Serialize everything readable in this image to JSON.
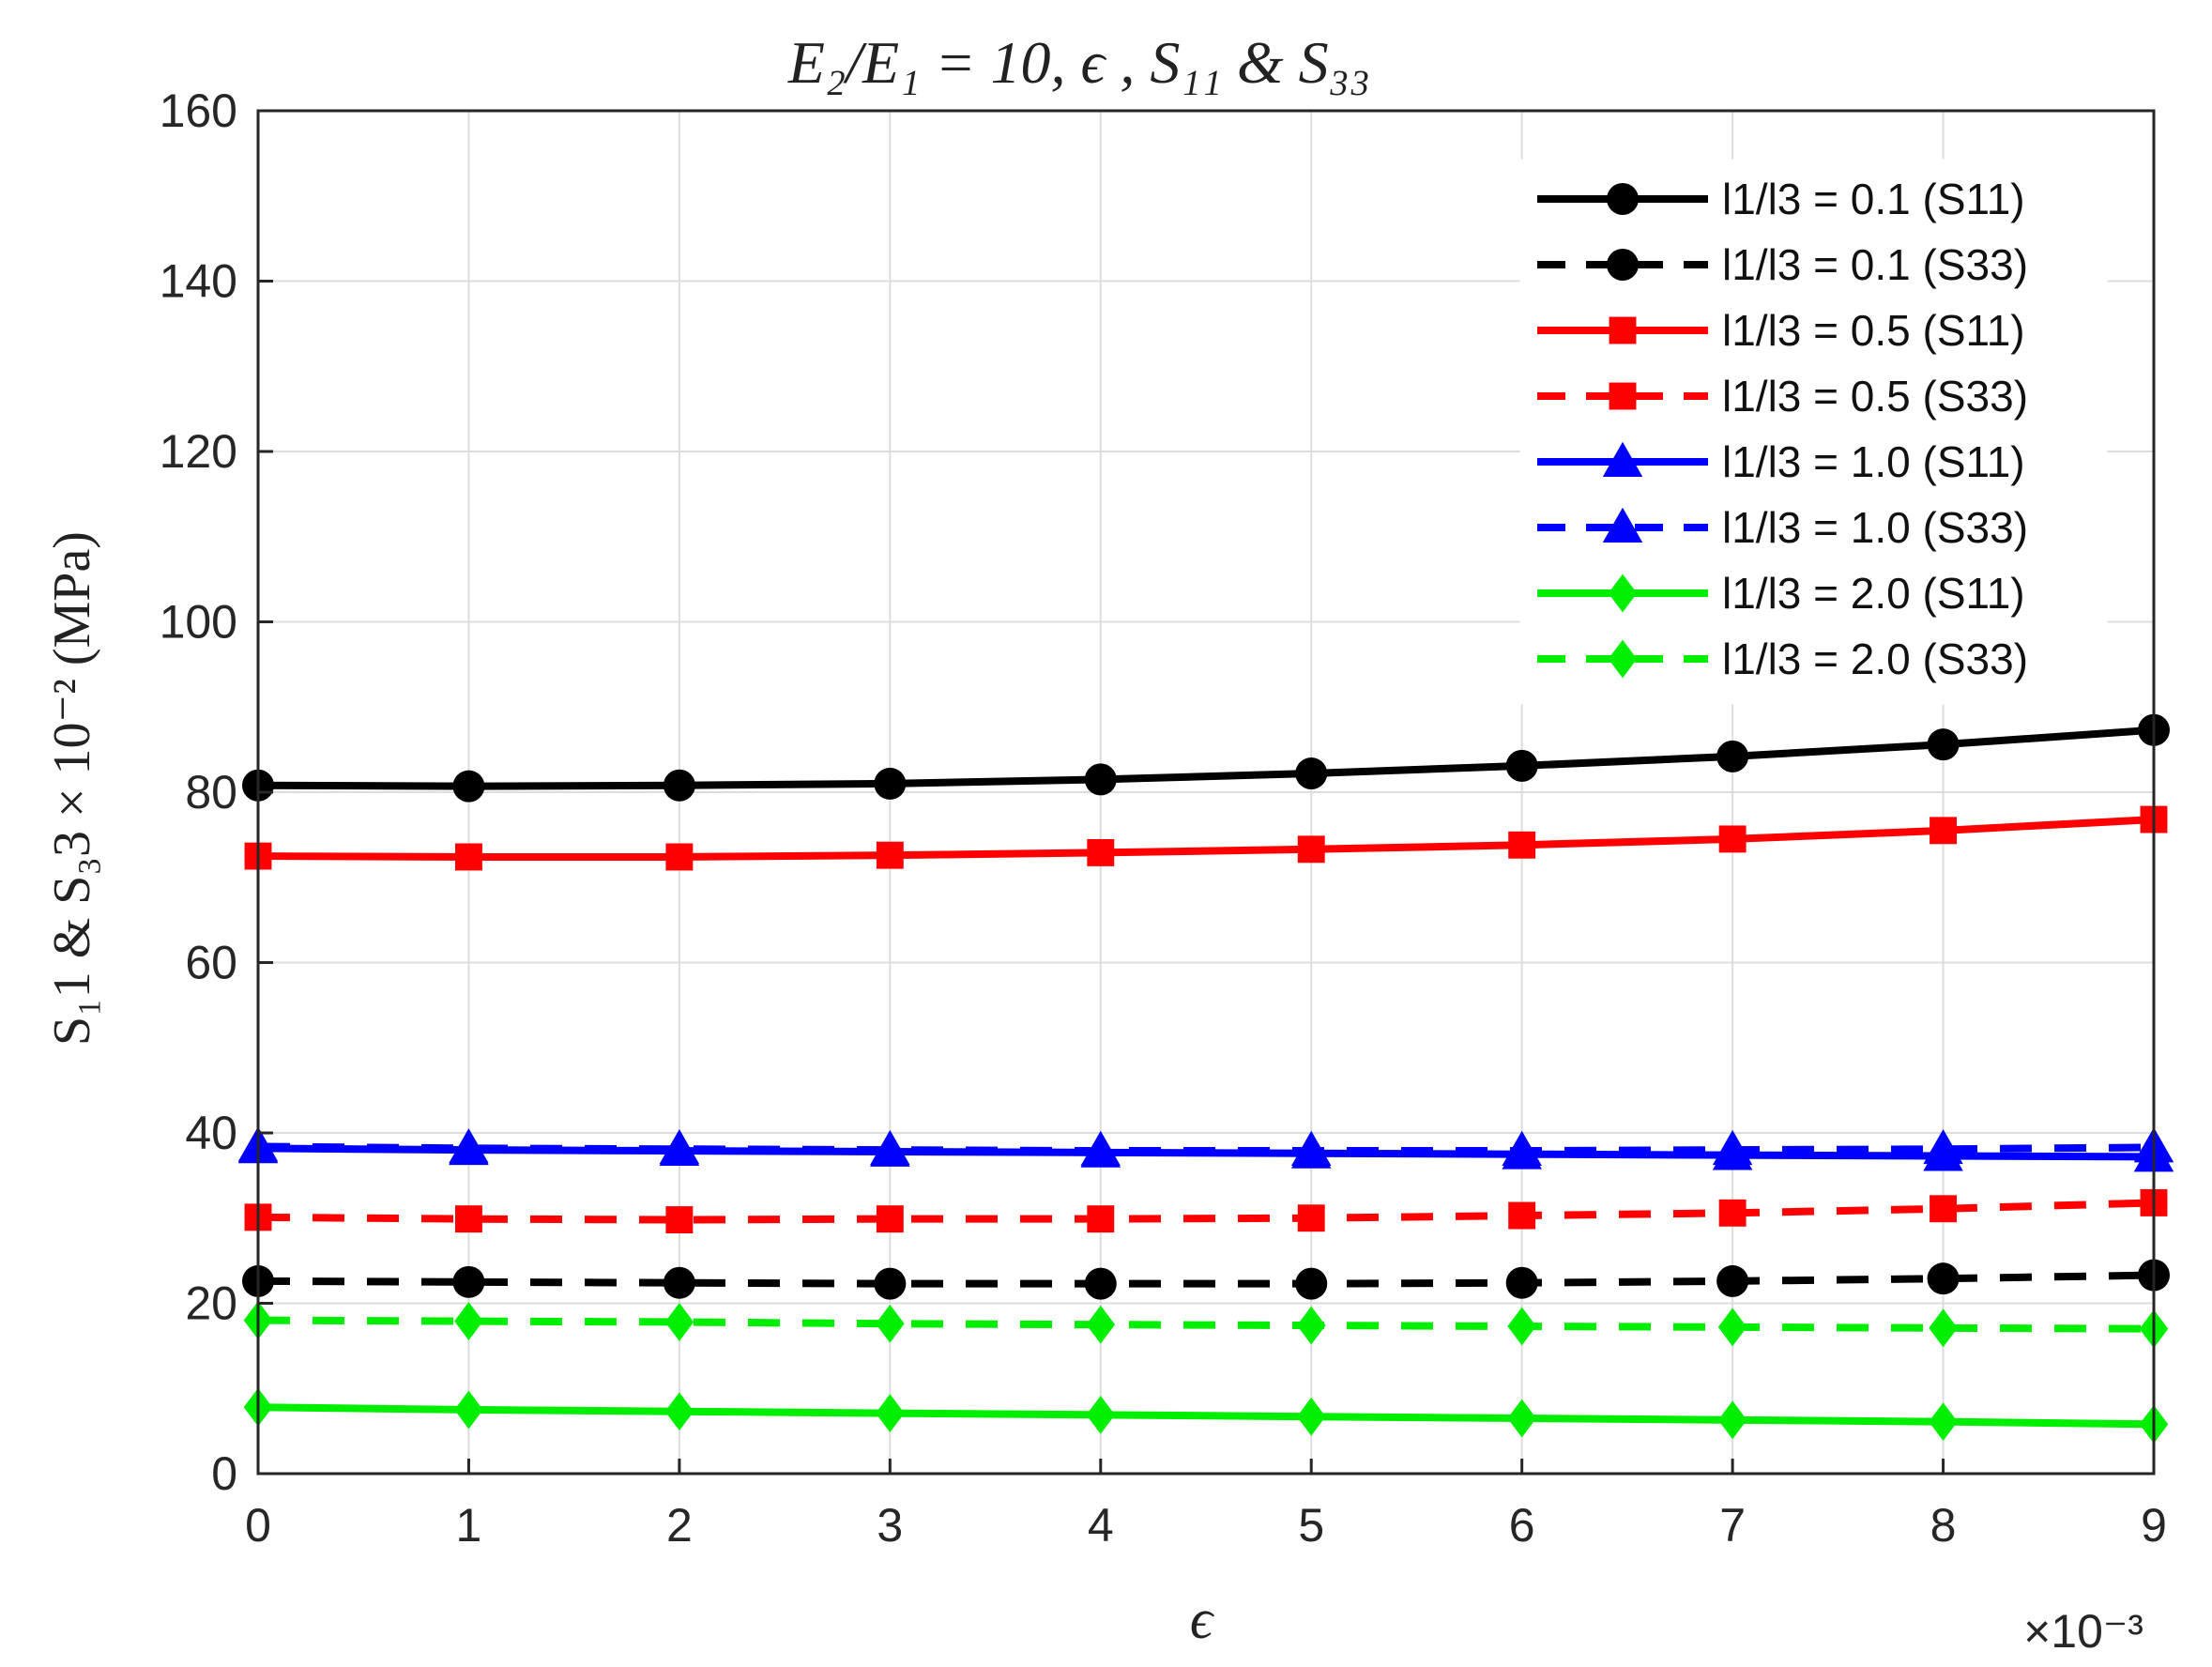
{
  "chart_data": {
    "type": "line",
    "title": "E₂/E₁ = 10, ϵ , S₁₁ & S₃₃",
    "xlabel": "ϵ",
    "x_multiplier": "×10⁻³",
    "ylabel": "S₁1 & S₃3 × 10⁻² (MPa)",
    "xlim": [
      0,
      9
    ],
    "ylim": [
      0,
      160
    ],
    "x_ticks": [
      "0",
      "1",
      "2",
      "3",
      "4",
      "5",
      "6",
      "7",
      "8",
      "9"
    ],
    "y_ticks": [
      "0",
      "20",
      "40",
      "60",
      "80",
      "100",
      "120",
      "140",
      "160"
    ],
    "grid": true,
    "legend_position": "top-right",
    "x": [
      0,
      1,
      2,
      3,
      4,
      5,
      6,
      7,
      8,
      9
    ],
    "series": [
      {
        "name": "l1/l3 = 0.1 (S11)",
        "color": "#000000",
        "dash": "solid",
        "marker": "circle",
        "values": [
          80.8,
          80.7,
          80.8,
          81.0,
          81.5,
          82.2,
          83.1,
          84.2,
          85.6,
          87.3
        ]
      },
      {
        "name": "l1/l3 = 0.1 (S33)",
        "color": "#000000",
        "dash": "dashed",
        "marker": "circle",
        "values": [
          22.6,
          22.5,
          22.4,
          22.3,
          22.3,
          22.3,
          22.4,
          22.6,
          22.9,
          23.3
        ]
      },
      {
        "name": "l1/l3 = 0.5 (S11)",
        "color": "#ff0000",
        "dash": "solid",
        "marker": "square",
        "values": [
          72.5,
          72.4,
          72.4,
          72.6,
          72.9,
          73.3,
          73.8,
          74.5,
          75.5,
          76.8
        ]
      },
      {
        "name": "l1/l3 = 0.5 (S33)",
        "color": "#ff0000",
        "dash": "dashed",
        "marker": "square",
        "values": [
          30.1,
          29.9,
          29.8,
          29.9,
          29.9,
          30.0,
          30.3,
          30.6,
          31.1,
          31.8
        ]
      },
      {
        "name": "l1/l3 = 1.0 (S11)",
        "color": "#0000ff",
        "dash": "solid",
        "marker": "triangle",
        "values": [
          38.2,
          38.0,
          37.9,
          37.8,
          37.7,
          37.6,
          37.5,
          37.4,
          37.3,
          37.2
        ]
      },
      {
        "name": "l1/l3 = 1.0 (S33)",
        "color": "#0000ff",
        "dash": "dashed",
        "marker": "triangle",
        "values": [
          38.4,
          38.2,
          38.1,
          38.0,
          37.9,
          37.9,
          37.9,
          38.0,
          38.1,
          38.3
        ]
      },
      {
        "name": "l1/l3 = 2.0 (S11)",
        "color": "#00ee00",
        "dash": "solid",
        "marker": "diamond",
        "values": [
          7.8,
          7.5,
          7.3,
          7.1,
          6.9,
          6.7,
          6.5,
          6.3,
          6.1,
          5.8
        ]
      },
      {
        "name": "l1/l3 = 2.0 (S33)",
        "color": "#00ee00",
        "dash": "dashed",
        "marker": "diamond",
        "values": [
          18.0,
          17.9,
          17.8,
          17.6,
          17.5,
          17.4,
          17.3,
          17.2,
          17.1,
          17.0
        ]
      }
    ]
  }
}
